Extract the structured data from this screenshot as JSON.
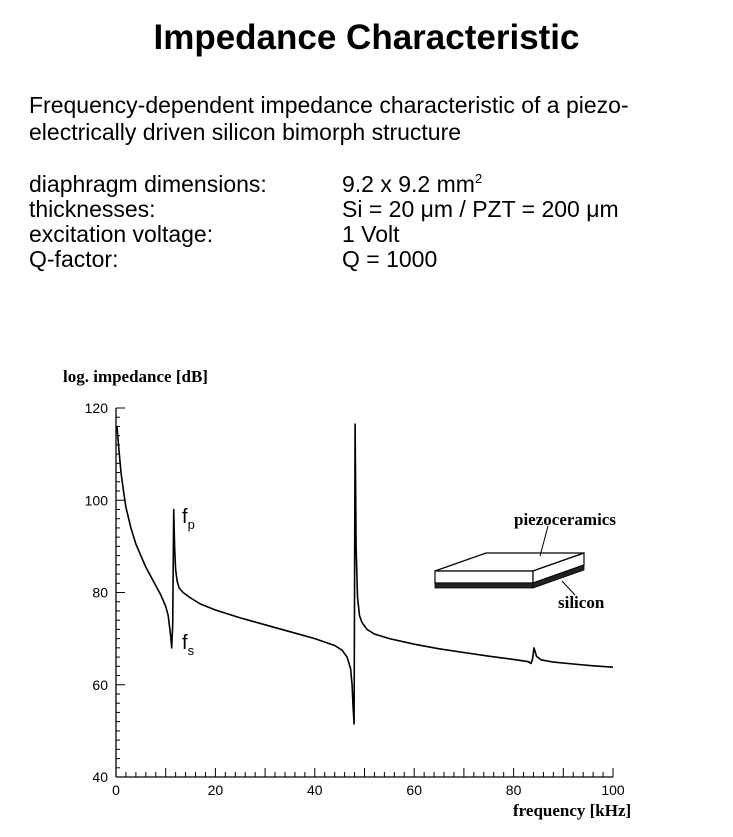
{
  "header": {
    "title": "Impedance Characteristic",
    "subtitle": "Frequency-dependent impedance characteristic of a piezo-electrically driven silicon bimorph structure"
  },
  "params": [
    {
      "label": "diaphragm dimensions:",
      "value": "9.2 x 9.2 mm",
      "sup": "2"
    },
    {
      "label": "thicknesses:",
      "value": "Si = 20 μm / PZT = 200 μm",
      "sup": ""
    },
    {
      "label": "excitation voltage:",
      "value": "1 Volt",
      "sup": ""
    },
    {
      "label": "Q-factor:",
      "value": "Q = 1000",
      "sup": ""
    }
  ],
  "chart_data": {
    "type": "line",
    "ylabel": "log. impedance [dB]",
    "xlabel": "frequency [kHz]",
    "xlim": [
      0,
      100
    ],
    "ylim": [
      40,
      120
    ],
    "xticks": [
      0,
      20,
      40,
      60,
      80,
      100
    ],
    "yticks": [
      40,
      60,
      80,
      100,
      120
    ],
    "grid": false,
    "series": [
      {
        "x": [
          0.2,
          0.5,
          1,
          1.5,
          2,
          3,
          4,
          5,
          6,
          7,
          8,
          9,
          10,
          10.5,
          11,
          11.2,
          11.4,
          11.6,
          11.8,
          12,
          12.3,
          12.7,
          13.5,
          15,
          17,
          20,
          25,
          30,
          35,
          40,
          44,
          45.5,
          46.5,
          47.2,
          47.5,
          47.7,
          47.9,
          48.1,
          48.3,
          48.6,
          49,
          49.5,
          50.5,
          52,
          55,
          60,
          65,
          70,
          75,
          80,
          83,
          83.5,
          83.8,
          84.1,
          84.6,
          85.5,
          88,
          92,
          96,
          100
        ],
        "y": [
          116,
          112,
          106,
          102,
          98.5,
          94,
          90.5,
          88,
          85.5,
          83.5,
          81.5,
          79.5,
          77,
          75,
          70.5,
          68,
          73,
          98,
          90,
          85,
          82.5,
          81,
          80,
          78.8,
          77.5,
          76.2,
          74.5,
          73,
          71.5,
          70,
          68.5,
          67.5,
          66,
          63.5,
          60,
          55,
          51.5,
          116.5,
          90,
          79,
          75,
          73.5,
          72,
          71,
          70,
          68.8,
          67.8,
          67,
          66.2,
          65.5,
          65,
          64.6,
          65.5,
          68,
          66.2,
          65.4,
          64.9,
          64.5,
          64.1,
          63.8
        ]
      }
    ],
    "annotations": [
      {
        "text": "f",
        "sub": "p"
      },
      {
        "text": "f",
        "sub": "s"
      },
      {
        "text": "piezoceramics"
      },
      {
        "text": "silicon"
      }
    ]
  }
}
